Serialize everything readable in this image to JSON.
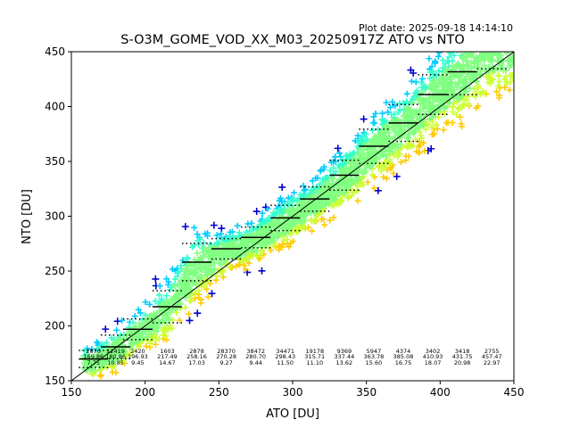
{
  "plot_date": "Plot date: 2025-09-18 14:14:10",
  "chart_data": {
    "type": "scatter",
    "title": "S-O3M_GOME_VOD_XX_M03_20250917Z ATO vs NTO",
    "xlabel": "ATO [DU]",
    "ylabel": "NTO [DU]",
    "xlim": [
      150,
      450
    ],
    "ylim": [
      150,
      450
    ],
    "xticks": [
      "150",
      "200",
      "250",
      "300",
      "350",
      "400",
      "450"
    ],
    "yticks": [
      "150",
      "200",
      "250",
      "300",
      "350",
      "400",
      "450"
    ],
    "grid": false,
    "reference_line": "y = x",
    "density_colors": [
      "#0000cc",
      "#00ccff",
      "#33ffcc",
      "#80ff80",
      "#ccff33",
      "#ffcc00"
    ],
    "bins": [
      {
        "center": 165,
        "count": "2070",
        "mean": "169.86",
        "std": "7.75",
        "mean_value": 169.86,
        "std_value": 7.75
      },
      {
        "center": 180,
        "count": "12419",
        "mean": "180.86",
        "std": "10.85",
        "mean_value": 180.86,
        "std_value": 10.85
      },
      {
        "center": 195,
        "count": "2420",
        "mean": "196.93",
        "std": "9.45",
        "mean_value": 196.93,
        "std_value": 9.45
      },
      {
        "center": 215,
        "count": "1603",
        "mean": "217.49",
        "std": "14.67",
        "mean_value": 217.49,
        "std_value": 14.67
      },
      {
        "center": 235,
        "count": "2878",
        "mean": "258.16",
        "std": "17.03",
        "mean_value": 258.16,
        "std_value": 17.03
      },
      {
        "center": 255,
        "count": "28370",
        "mean": "270.28",
        "std": "9.27",
        "mean_value": 270.28,
        "std_value": 9.27
      },
      {
        "center": 275,
        "count": "38472",
        "mean": "280.70",
        "std": "9.44",
        "mean_value": 280.7,
        "std_value": 9.44
      },
      {
        "center": 295,
        "count": "34471",
        "mean": "298.43",
        "std": "11.50",
        "mean_value": 298.43,
        "std_value": 11.5
      },
      {
        "center": 315,
        "count": "19178",
        "mean": "315.71",
        "std": "11.10",
        "mean_value": 315.71,
        "std_value": 11.1
      },
      {
        "center": 335,
        "count": "9369",
        "mean": "337.44",
        "std": "13.62",
        "mean_value": 337.44,
        "std_value": 13.62
      },
      {
        "center": 355,
        "count": "5947",
        "mean": "363.78",
        "std": "15.60",
        "mean_value": 363.78,
        "std_value": 15.6
      },
      {
        "center": 375,
        "count": "4374",
        "mean": "385.08",
        "std": "16.75",
        "mean_value": 385.08,
        "std_value": 16.75
      },
      {
        "center": 395,
        "count": "3402",
        "mean": "410.93",
        "std": "18.07",
        "mean_value": 410.93,
        "std_value": 18.07
      },
      {
        "center": 415,
        "count": "3418",
        "mean": "431.75",
        "std": "20.98",
        "mean_value": 431.75,
        "std_value": 20.98
      },
      {
        "center": 435,
        "count": "2755",
        "mean": "457.47",
        "std": "22.97",
        "mean_value": 457.47,
        "std_value": 22.97
      }
    ]
  }
}
